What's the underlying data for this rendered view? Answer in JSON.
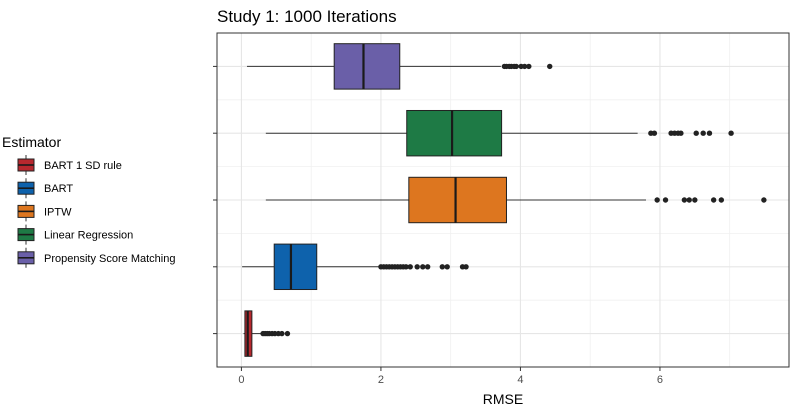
{
  "chart_data": {
    "type": "boxplot",
    "title": "Study 1: 1000 Iterations",
    "xlabel": "RMSE",
    "ylabel": "",
    "xlim": [
      -0.35,
      7.85
    ],
    "xticks": [
      0,
      2,
      4,
      6
    ],
    "grid": true,
    "legend": {
      "title": "Estimator",
      "placement": "left",
      "entries": [
        "BART 1 SD rule",
        "BART",
        "IPTW",
        "Linear Regression",
        "Propensity Score Matching"
      ]
    },
    "series": [
      {
        "name": "Propensity Score Matching",
        "color": "#6a5fa8",
        "whisker_low": 0.08,
        "q1": 1.33,
        "median": 1.75,
        "q3": 2.27,
        "whisker_high": 3.72,
        "outliers": [
          3.77,
          3.8,
          3.84,
          3.87,
          3.91,
          3.94,
          4.01,
          4.06,
          4.12,
          4.42
        ]
      },
      {
        "name": "Linear Regression",
        "color": "#1e7a45",
        "whisker_low": 0.35,
        "q1": 2.37,
        "median": 3.02,
        "q3": 3.73,
        "whisker_high": 5.68,
        "outliers": [
          5.87,
          5.92,
          6.16,
          6.21,
          6.26,
          6.3,
          6.52,
          6.62,
          6.71,
          7.02
        ]
      },
      {
        "name": "IPTW",
        "color": "#dd761f",
        "whisker_low": 0.35,
        "q1": 2.4,
        "median": 3.07,
        "q3": 3.8,
        "whisker_high": 5.8,
        "outliers": [
          5.96,
          6.08,
          6.35,
          6.42,
          6.5,
          6.77,
          6.88,
          7.49
        ]
      },
      {
        "name": "BART",
        "color": "#0e62ac",
        "whisker_low": 0.01,
        "q1": 0.47,
        "median": 0.71,
        "q3": 1.08,
        "whisker_high": 1.98,
        "outliers": [
          2.0,
          2.04,
          2.08,
          2.12,
          2.16,
          2.2,
          2.24,
          2.28,
          2.32,
          2.36,
          2.42,
          2.52,
          2.6,
          2.67,
          2.88,
          2.95,
          3.17,
          3.22
        ]
      },
      {
        "name": "BART 1 SD rule",
        "color": "#b7282e",
        "whisker_low": 0.03,
        "q1": 0.05,
        "median": 0.09,
        "q3": 0.15,
        "whisker_high": 0.28,
        "outliers": [
          0.31,
          0.34,
          0.37,
          0.4,
          0.44,
          0.48,
          0.53,
          0.58,
          0.66
        ]
      }
    ]
  }
}
